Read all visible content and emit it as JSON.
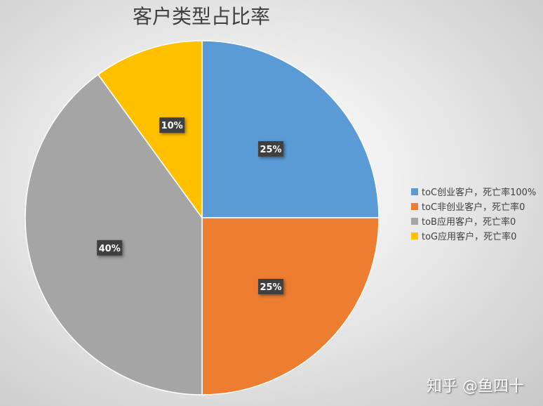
{
  "chart_data": {
    "type": "pie",
    "title": "客户类型占比率",
    "slices": [
      {
        "name": "toC创业客户，死亡率100%",
        "value": 25,
        "label": "25%",
        "color": "#5B9BD5"
      },
      {
        "name": "toC非创业客户，死亡率0",
        "value": 25,
        "label": "25%",
        "color": "#ED7D31"
      },
      {
        "name": "toB应用客户，死亡率0",
        "value": 40,
        "label": "40%",
        "color": "#A5A5A5"
      },
      {
        "name": "toG应用客户，死亡率0",
        "value": 10,
        "label": "10%",
        "color": "#FFC000"
      }
    ],
    "start_angle": "top",
    "direction": "clockwise",
    "legend_position": "right"
  },
  "watermark": "知乎 @鱼四十"
}
